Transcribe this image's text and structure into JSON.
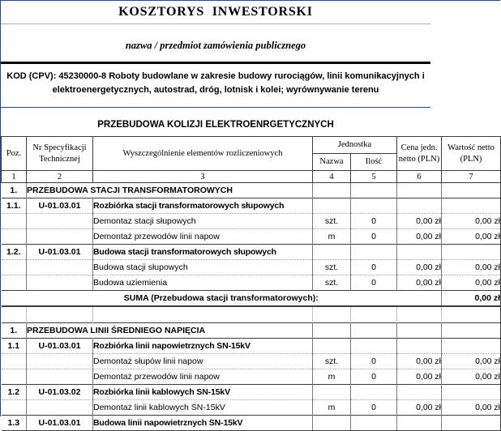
{
  "document": {
    "title": "KOSZTORYS  INWESTORSKI",
    "subtitle": "nazwa / przedmiot zamówienia publicznego",
    "cpv": {
      "line1": "KOD (CPV): 45230000-8 Roboty budowlane w zakresie budowy rurociągów, linii komunikacyjnych i",
      "line2": "elektroenergetycznych, autostrad, dróg, lotnisk i kolei; wyrównywanie terenu"
    },
    "estimate_title": "PRZEBUDOWA KOLIZJI ELEKTROENRGETYCZNYCH"
  },
  "table": {
    "headers": {
      "poz": "Poz.",
      "spec": "Nr Specyfikacji Technicznej",
      "desc": "Wyszczególnienie elementów rozliczeniowych",
      "unit_group": "Jednostka",
      "unit_name": "Nazwa",
      "unit_qty": "Ilość",
      "unit_price": "Cena jedn. netto (PLN)",
      "value": "Wartość netto (PLN)"
    },
    "column_numbers": [
      "1",
      "2",
      "3",
      "4",
      "5",
      "6",
      "7"
    ],
    "rows": [
      {
        "type": "section",
        "poz": "1.",
        "desc": "PRZEBUDOWA STACJI TRANSFORMATOROWYCH"
      },
      {
        "type": "block",
        "poz": "1.1.",
        "spec": "U-01.03.01",
        "desc": "Rozbiórka stacji transformatorowych słupowych"
      },
      {
        "type": "item",
        "desc": "Demontaz stacji słupowych",
        "unit": "szt.",
        "qty": "0",
        "price": "0,00 zł",
        "value": "0,00 zł"
      },
      {
        "type": "item",
        "desc": "Demontaż przewodów linii napow",
        "unit": "m",
        "qty": "0",
        "price": "0,00 zł",
        "value": "0,00 zł"
      },
      {
        "type": "block",
        "poz": "1.2.",
        "spec": "U-01.03.01",
        "desc": "Budowa stacji transformatorowych słupowych"
      },
      {
        "type": "item",
        "desc": "Budowa stacji słupowych",
        "unit": "szt.",
        "qty": "0",
        "price": "0,00 zł",
        "value": "0,00 zł"
      },
      {
        "type": "item",
        "desc": "Budowa uziemienia",
        "unit": "szt.",
        "qty": "0",
        "price": "0,00 zł",
        "value": "0,00 zł"
      },
      {
        "type": "suma",
        "label": "SUMA (Przebudowa stacji transformatorowych):",
        "value": "0,00 zł"
      },
      {
        "type": "spacer"
      },
      {
        "type": "section",
        "poz": "1.",
        "desc": "PRZEBUDOWA LINII ŚREDNIEGO NAPIĘCIA"
      },
      {
        "type": "block",
        "poz": "1.1",
        "spec": "U-01.03.01",
        "desc": "Rozbiórka linii napowietrznych SN-15kV"
      },
      {
        "type": "item",
        "desc": "Demontaż słupów linii napow",
        "unit": "szt.",
        "qty": "0",
        "price": "0,00 zł",
        "value": "0,00 zł"
      },
      {
        "type": "item",
        "desc": "Demontaż przewodów linii napow",
        "unit": "m",
        "qty": "0",
        "price": "0,00 zł",
        "value": "0,00 zł"
      },
      {
        "type": "block",
        "poz": "1.2",
        "spec": "U-01.03.02",
        "desc": "Rozbiórka linii kablowych SN-15kV"
      },
      {
        "type": "item",
        "desc": "Demontaż linii kablowych SN-15kV",
        "unit": "m",
        "qty": "0",
        "price": "0,00 zł",
        "value": "0,00 zł"
      },
      {
        "type": "block",
        "poz": "1.3",
        "spec": "U-01.03.01",
        "desc": "Budowa linii napowietrznych SN-15kV"
      }
    ]
  },
  "colors": {
    "sheet_border": "#31487a",
    "grid_dark": "#3c3c3c",
    "grid_mid": "#7a7a7a",
    "grid_dotted": "#a3a3a3",
    "text": "#000000",
    "background": "#ffffff"
  }
}
